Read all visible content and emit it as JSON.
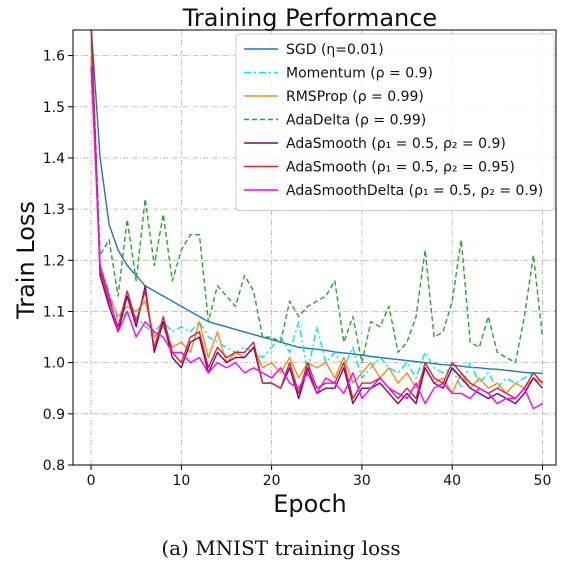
{
  "caption": "(a) MNIST training loss",
  "chart_data": {
    "type": "line",
    "title": "Training Performance",
    "xlabel": "Epoch",
    "ylabel": "Train Loss",
    "xlim": [
      -2,
      51.5
    ],
    "ylim": [
      0.8,
      1.65
    ],
    "xticks": [
      0,
      10,
      20,
      30,
      40,
      50
    ],
    "yticks": [
      0.8,
      0.9,
      1.0,
      1.1,
      1.2,
      1.3,
      1.4,
      1.5,
      1.6
    ],
    "grid": true,
    "legend_position": "top-right",
    "x": [
      0,
      1,
      2,
      3,
      4,
      5,
      6,
      7,
      8,
      9,
      10,
      11,
      12,
      13,
      14,
      15,
      16,
      17,
      18,
      19,
      20,
      21,
      22,
      23,
      24,
      25,
      26,
      27,
      28,
      29,
      30,
      31,
      32,
      33,
      34,
      35,
      36,
      37,
      38,
      39,
      40,
      41,
      42,
      43,
      44,
      45,
      46,
      47,
      48,
      49,
      50
    ],
    "series": [
      {
        "name": "SGD (η=0.01)",
        "color": "#1f77b4",
        "dash": "solid",
        "values": [
          1.66,
          1.4,
          1.27,
          1.22,
          1.19,
          1.17,
          1.15,
          1.14,
          1.13,
          1.12,
          1.11,
          1.1,
          1.09,
          1.08,
          1.075,
          1.07,
          1.065,
          1.06,
          1.055,
          1.05,
          1.045,
          1.04,
          1.035,
          1.03,
          1.028,
          1.026,
          1.024,
          1.021,
          1.019,
          1.017,
          1.015,
          1.012,
          1.01,
          1.008,
          1.006,
          1.004,
          1.002,
          1.0,
          0.998,
          0.996,
          0.995,
          0.993,
          0.991,
          0.99,
          0.988,
          0.987,
          0.985,
          0.983,
          0.981,
          0.98,
          0.979
        ]
      },
      {
        "name": "Momentum (ρ = 0.9)",
        "color": "#00e5ee",
        "dash": "dashdot",
        "values": [
          1.62,
          1.19,
          1.14,
          1.08,
          1.1,
          1.09,
          1.07,
          1.06,
          1.08,
          1.06,
          1.07,
          1.06,
          1.08,
          1.05,
          1.04,
          1.03,
          1.02,
          1.03,
          1.02,
          1.01,
          1.03,
          1.05,
          1.02,
          1.08,
          0.98,
          1.07,
          1.0,
          1.02,
          0.99,
          1.03,
          0.97,
          0.99,
          1.01,
          0.99,
          0.98,
          1.0,
          0.97,
          1.02,
          0.99,
          0.98,
          0.99,
          0.95,
          1.0,
          0.96,
          0.98,
          0.95,
          0.97,
          0.96,
          0.97,
          0.98,
          0.96
        ]
      },
      {
        "name": "RMSProp (ρ = 0.99)",
        "color": "#ff8c1a",
        "dash": "solid",
        "values": [
          1.6,
          1.18,
          1.13,
          1.09,
          1.11,
          1.1,
          1.12,
          1.05,
          1.07,
          1.03,
          1.04,
          1.02,
          1.08,
          1.01,
          1.06,
          1.0,
          1.02,
          1.01,
          1.03,
          0.99,
          1.0,
          0.98,
          1.01,
          0.97,
          1.0,
          0.99,
          1.0,
          0.97,
          1.01,
          0.96,
          0.98,
          1.0,
          0.97,
          0.99,
          0.96,
          0.98,
          0.95,
          0.99,
          0.96,
          0.97,
          0.94,
          0.98,
          0.95,
          0.97,
          0.95,
          0.96,
          0.94,
          0.96,
          0.95,
          0.97,
          0.96
        ]
      },
      {
        "name": "AdaDelta (ρ = 0.99)",
        "color": "#2ca02c",
        "dash": "dashed",
        "values": [
          1.66,
          1.21,
          1.24,
          1.13,
          1.28,
          1.16,
          1.32,
          1.19,
          1.29,
          1.16,
          1.22,
          1.25,
          1.25,
          1.08,
          1.15,
          1.13,
          1.11,
          1.17,
          1.14,
          1.05,
          1.05,
          1.04,
          1.12,
          1.09,
          1.11,
          1.12,
          1.13,
          1.16,
          1.04,
          1.09,
          1.0,
          1.08,
          1.07,
          1.11,
          1.02,
          1.04,
          1.09,
          1.22,
          1.05,
          1.06,
          1.12,
          1.24,
          1.04,
          1.03,
          1.09,
          1.02,
          1.01,
          1.0,
          1.09,
          1.21,
          1.05
        ]
      },
      {
        "name": "AdaSmooth (ρ₁ = 0.5, ρ₂ = 0.9)",
        "color": "#800080",
        "dash": "solid",
        "values": [
          1.66,
          1.17,
          1.11,
          1.06,
          1.13,
          1.07,
          1.15,
          1.02,
          1.08,
          1.01,
          0.99,
          1.04,
          1.05,
          0.98,
          1.02,
          1.0,
          1.01,
          1.01,
          1.03,
          0.96,
          0.96,
          0.95,
          0.99,
          0.93,
          0.99,
          0.94,
          0.95,
          0.95,
          0.99,
          0.92,
          0.95,
          0.95,
          0.96,
          0.94,
          0.92,
          0.94,
          0.92,
          0.99,
          0.96,
          0.95,
          0.99,
          0.97,
          0.95,
          0.94,
          0.93,
          0.94,
          0.93,
          0.92,
          0.94,
          0.97,
          0.95
        ]
      },
      {
        "name": "AdaSmooth (ρ₁ = 0.5, ρ₂ = 0.95)",
        "color": "#d62728",
        "dash": "solid",
        "values": [
          1.66,
          1.18,
          1.12,
          1.07,
          1.14,
          1.08,
          1.14,
          1.03,
          1.09,
          1.02,
          1.0,
          1.05,
          1.06,
          0.99,
          1.03,
          1.01,
          1.02,
          1.02,
          1.04,
          0.96,
          0.96,
          0.95,
          1.0,
          0.94,
          1.0,
          0.95,
          0.96,
          0.96,
          1.0,
          0.93,
          0.96,
          0.96,
          0.97,
          0.95,
          0.93,
          0.95,
          0.93,
          1.0,
          0.97,
          0.96,
          1.0,
          0.98,
          0.96,
          0.95,
          0.94,
          0.95,
          0.94,
          0.93,
          0.95,
          0.98,
          0.96
        ]
      },
      {
        "name": "AdaSmoothDelta (ρ₁ = 0.5, ρ₂ = 0.9)",
        "color": "#ff00ff",
        "dash": "solid",
        "values": [
          1.58,
          1.19,
          1.13,
          1.06,
          1.1,
          1.05,
          1.08,
          1.06,
          1.05,
          1.02,
          1.02,
          1.0,
          1.01,
          0.98,
          1.0,
          0.99,
          1.0,
          0.98,
          0.99,
          0.98,
          0.97,
          0.99,
          0.96,
          0.95,
          0.98,
          0.94,
          0.97,
          0.96,
          0.94,
          0.98,
          0.93,
          0.95,
          0.97,
          0.95,
          0.94,
          0.93,
          0.96,
          0.92,
          0.95,
          0.96,
          0.94,
          0.94,
          0.93,
          0.95,
          0.94,
          0.92,
          0.93,
          0.93,
          0.95,
          0.91,
          0.92
        ]
      }
    ]
  }
}
